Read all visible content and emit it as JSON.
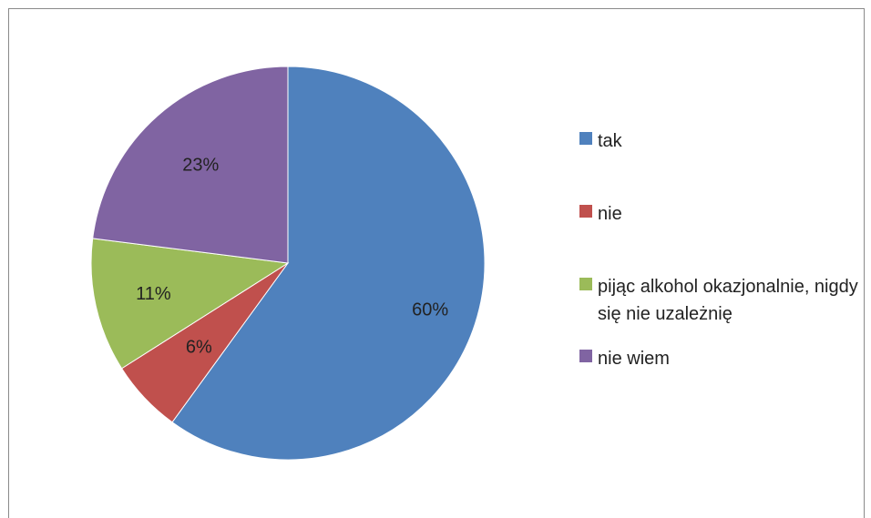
{
  "chart_data": {
    "type": "pie",
    "start_angle_deg": 0,
    "direction": "clockwise",
    "legend_position": "right",
    "series": [
      {
        "label": "tak",
        "value": 60,
        "label_text": "60%",
        "color": "#4f81bd"
      },
      {
        "label": "nie",
        "value": 6,
        "label_text": "6%",
        "color": "#c0504d"
      },
      {
        "label": "pijąc alkohol okazjonalnie, nigdy się nie uzależnię",
        "value": 11,
        "label_text": "11%",
        "color": "#9bbb59"
      },
      {
        "label": "nie wiem",
        "value": 23,
        "label_text": "23%",
        "color": "#8064a2"
      }
    ]
  }
}
